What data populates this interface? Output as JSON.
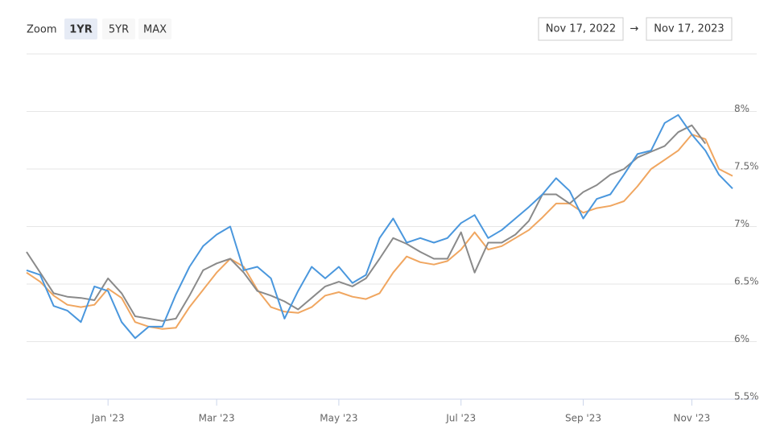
{
  "zoom": {
    "label": "Zoom",
    "buttons": [
      "1YR",
      "5YR",
      "MAX"
    ],
    "selected": 0
  },
  "date_range": {
    "from": "Nov 17, 2022",
    "separator": "→",
    "to": "Nov 17, 2023"
  },
  "chart_data": {
    "type": "line",
    "categories": [
      null,
      null,
      null,
      null,
      null,
      null,
      "Jan '23",
      null,
      null,
      null,
      null,
      null,
      null,
      null,
      "Mar '23",
      null,
      null,
      null,
      null,
      null,
      null,
      null,
      null,
      "May '23",
      null,
      null,
      null,
      null,
      null,
      null,
      null,
      null,
      "Jul '23",
      null,
      null,
      null,
      null,
      null,
      null,
      null,
      null,
      "Sep '23",
      null,
      null,
      null,
      null,
      null,
      null,
      null,
      "Nov '23",
      null,
      null,
      null
    ],
    "series": [
      {
        "color": "#4a97dd",
        "values": [
          6.62,
          6.58,
          6.31,
          6.27,
          6.17,
          6.48,
          6.44,
          6.17,
          6.03,
          6.13,
          6.13,
          6.41,
          6.65,
          6.83,
          6.93,
          7.0,
          6.62,
          6.65,
          6.55,
          6.2,
          6.44,
          6.65,
          6.55,
          6.65,
          6.51,
          6.58,
          6.9,
          7.07,
          6.86,
          6.9,
          6.86,
          6.9,
          7.03,
          7.1,
          6.9,
          6.97,
          7.07,
          7.17,
          7.28,
          7.42,
          7.31,
          7.07,
          7.24,
          7.28,
          7.45,
          7.63,
          7.66,
          7.9,
          7.97,
          7.8,
          7.66,
          7.45,
          7.33
        ]
      },
      {
        "color": "#8a8a8a",
        "values": [
          6.78,
          6.6,
          6.42,
          6.39,
          6.38,
          6.36,
          6.55,
          6.42,
          6.22,
          6.2,
          6.18,
          6.2,
          6.4,
          6.62,
          6.68,
          6.72,
          6.6,
          6.44,
          6.4,
          6.35,
          6.28,
          6.38,
          6.48,
          6.52,
          6.48,
          6.55,
          6.72,
          6.9,
          6.85,
          6.78,
          6.72,
          6.72,
          6.95,
          6.6,
          6.86,
          6.86,
          6.93,
          7.05,
          7.28,
          7.28,
          7.2,
          7.3,
          7.36,
          7.45,
          7.5,
          7.6,
          7.65,
          7.7,
          7.82,
          7.88,
          7.72,
          null,
          null
        ]
      },
      {
        "color": "#f0a660",
        "values": [
          6.6,
          6.52,
          6.4,
          6.32,
          6.3,
          6.32,
          6.46,
          6.38,
          6.17,
          6.13,
          6.11,
          6.12,
          6.3,
          6.45,
          6.6,
          6.72,
          6.65,
          6.45,
          6.3,
          6.26,
          6.25,
          6.3,
          6.4,
          6.43,
          6.39,
          6.37,
          6.42,
          6.6,
          6.74,
          6.69,
          6.67,
          6.7,
          6.8,
          6.95,
          6.8,
          6.83,
          6.9,
          6.97,
          7.08,
          7.2,
          7.2,
          7.12,
          7.16,
          7.18,
          7.22,
          7.35,
          7.5,
          7.58,
          7.66,
          7.8,
          7.76,
          7.5,
          7.44
        ]
      }
    ],
    "ylim": [
      5.5,
      8.5
    ],
    "yticks": [
      {
        "value": 5.5,
        "label": "5.5%"
      },
      {
        "value": 6,
        "label": "6%"
      },
      {
        "value": 6.5,
        "label": "6.5%"
      },
      {
        "value": 7,
        "label": "7%"
      },
      {
        "value": 7.5,
        "label": "7.5%"
      },
      {
        "value": 8,
        "label": "8%"
      }
    ],
    "grid": true
  }
}
